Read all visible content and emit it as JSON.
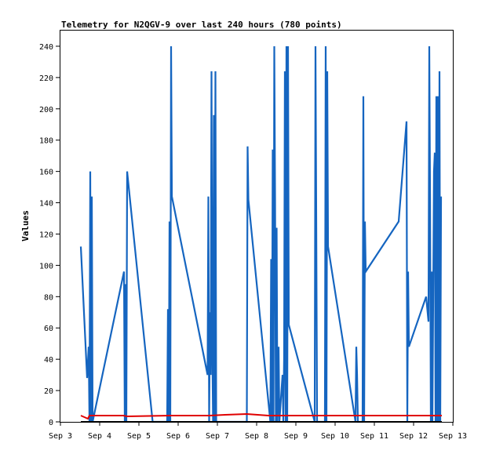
{
  "chart_data": {
    "type": "line",
    "title": "Telemetry for N2QGV-9 over last 240 hours (780 points)",
    "xlabel": "",
    "ylabel": "Values",
    "ylim": [
      0,
      250
    ],
    "yticks": [
      0,
      20,
      40,
      60,
      80,
      100,
      120,
      140,
      160,
      180,
      200,
      220,
      240
    ],
    "xticks": [
      "Sep 3",
      "Sep 4",
      "Sep 5",
      "Sep 6",
      "Sep 7",
      "Sep 8",
      "Sep 9",
      "Sep 10",
      "Sep 11",
      "Sep 12",
      "Sep 13"
    ],
    "xlim_days": [
      0,
      10
    ],
    "grid": false,
    "series": [
      {
        "color": "#1565c0",
        "points": [
          [
            0.52,
            112
          ],
          [
            0.68,
            28
          ],
          [
            0.72,
            48
          ],
          [
            0.74,
            0
          ],
          [
            0.76,
            160
          ],
          [
            0.78,
            0
          ],
          [
            0.8,
            144
          ],
          [
            0.82,
            0
          ],
          [
            1.62,
            96
          ],
          [
            1.64,
            0
          ],
          [
            1.66,
            88
          ],
          [
            1.68,
            0
          ],
          [
            1.7,
            160
          ],
          [
            2.35,
            0
          ],
          [
            2.37,
            0
          ],
          [
            2.72,
            0
          ],
          [
            2.74,
            72
          ],
          [
            2.76,
            0
          ],
          [
            2.78,
            128
          ],
          [
            2.8,
            0
          ],
          [
            2.82,
            240
          ],
          [
            2.84,
            144
          ],
          [
            3.75,
            30
          ],
          [
            3.77,
            144
          ],
          [
            3.79,
            0
          ],
          [
            3.81,
            70
          ],
          [
            3.83,
            30
          ],
          [
            3.85,
            224
          ],
          [
            3.87,
            48
          ],
          [
            3.89,
            0
          ],
          [
            3.91,
            196
          ],
          [
            3.93,
            0
          ],
          [
            3.95,
            224
          ],
          [
            3.97,
            0
          ],
          [
            4.75,
            0
          ],
          [
            4.77,
            176
          ],
          [
            4.79,
            142
          ],
          [
            5.35,
            0
          ],
          [
            5.37,
            104
          ],
          [
            5.39,
            0
          ],
          [
            5.41,
            174
          ],
          [
            5.43,
            0
          ],
          [
            5.45,
            240
          ],
          [
            5.47,
            144
          ],
          [
            5.49,
            0
          ],
          [
            5.51,
            124
          ],
          [
            5.53,
            0
          ],
          [
            5.56,
            48
          ],
          [
            5.58,
            0
          ],
          [
            5.66,
            30
          ],
          [
            5.68,
            0
          ],
          [
            5.7,
            40
          ],
          [
            5.72,
            224
          ],
          [
            5.74,
            0
          ],
          [
            5.76,
            240
          ],
          [
            5.78,
            0
          ],
          [
            5.8,
            240
          ],
          [
            5.82,
            62
          ],
          [
            6.48,
            0
          ],
          [
            6.5,
            240
          ],
          [
            6.52,
            128
          ],
          [
            6.54,
            0
          ],
          [
            6.74,
            0
          ],
          [
            6.76,
            240
          ],
          [
            6.78,
            0
          ],
          [
            6.8,
            224
          ],
          [
            6.82,
            112
          ],
          [
            7.52,
            0
          ],
          [
            7.54,
            48
          ],
          [
            7.56,
            30
          ],
          [
            7.58,
            0
          ],
          [
            7.7,
            0
          ],
          [
            7.72,
            208
          ],
          [
            7.74,
            0
          ],
          [
            7.76,
            128
          ],
          [
            7.78,
            96
          ],
          [
            8.62,
            128
          ],
          [
            8.82,
            192
          ],
          [
            8.84,
            0
          ],
          [
            8.86,
            96
          ],
          [
            8.88,
            48
          ],
          [
            9.32,
            80
          ],
          [
            9.38,
            64
          ],
          [
            9.4,
            240
          ],
          [
            9.42,
            144
          ],
          [
            9.44,
            0
          ],
          [
            9.46,
            96
          ],
          [
            9.48,
            0
          ],
          [
            9.52,
            160
          ],
          [
            9.54,
            172
          ],
          [
            9.56,
            0
          ],
          [
            9.58,
            208
          ],
          [
            9.6,
            0
          ],
          [
            9.62,
            208
          ],
          [
            9.64,
            0
          ],
          [
            9.66,
            224
          ],
          [
            9.68,
            0
          ],
          [
            9.7,
            144
          ]
        ]
      },
      {
        "color": "#e00000",
        "points": [
          [
            0.52,
            4
          ],
          [
            0.7,
            2
          ],
          [
            0.74,
            4
          ],
          [
            1.6,
            4
          ],
          [
            1.7,
            3.5
          ],
          [
            2.8,
            4
          ],
          [
            3.8,
            4
          ],
          [
            4.2,
            4.5
          ],
          [
            4.75,
            5
          ],
          [
            5.3,
            4
          ],
          [
            6.0,
            4
          ],
          [
            7.0,
            4
          ],
          [
            7.55,
            4
          ],
          [
            8.0,
            4
          ],
          [
            9.0,
            4
          ],
          [
            9.72,
            4
          ]
        ]
      },
      {
        "color": "#000000",
        "points": [
          [
            0.52,
            0
          ],
          [
            9.72,
            0
          ]
        ]
      }
    ]
  }
}
